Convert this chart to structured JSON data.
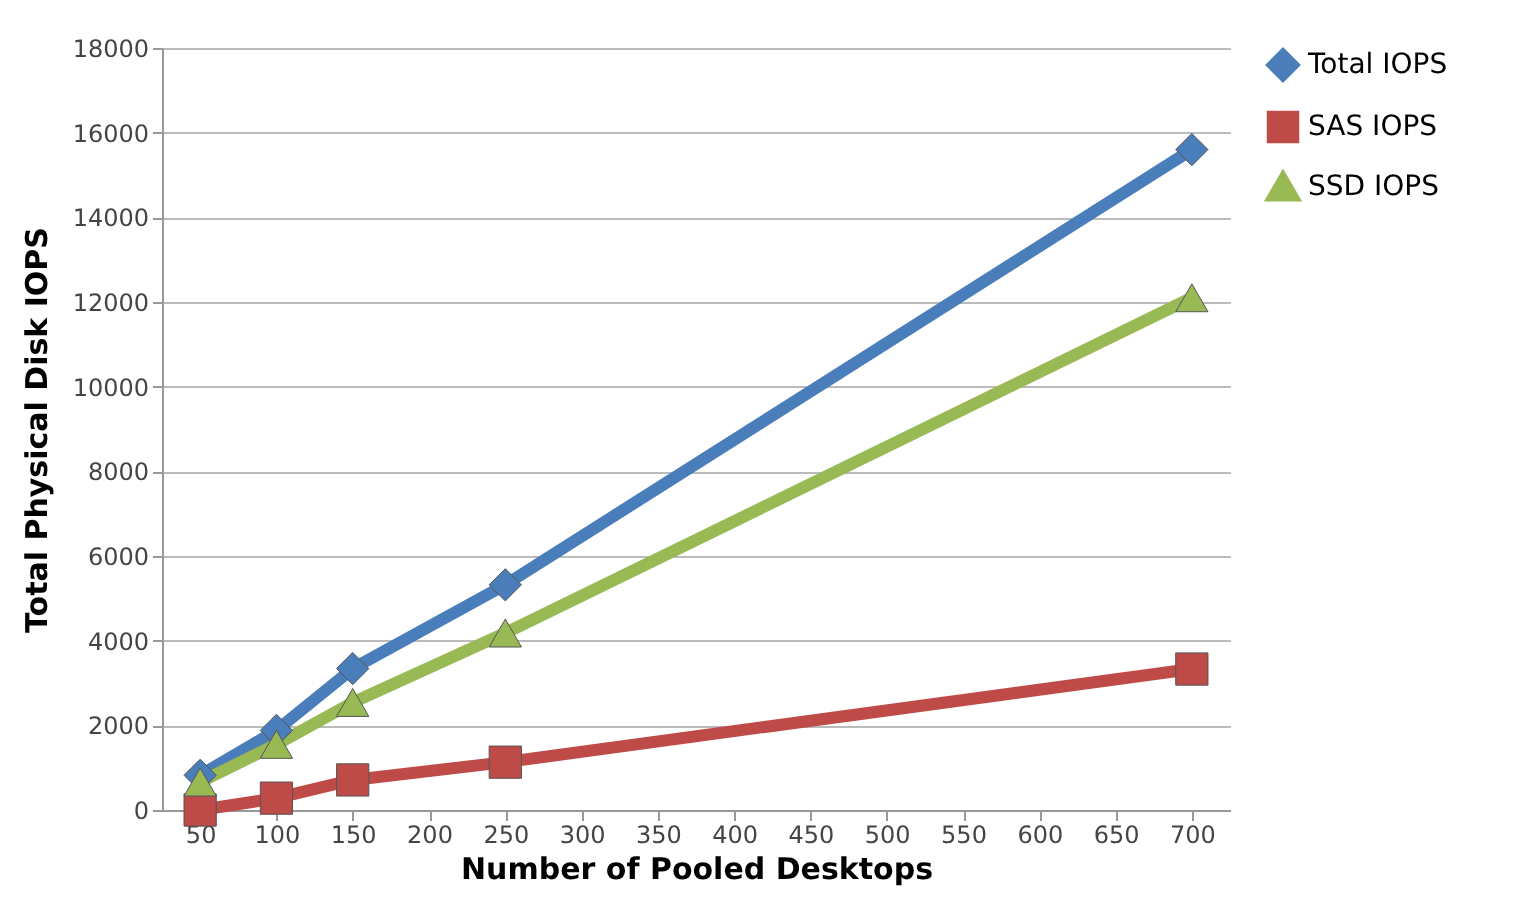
{
  "chart_data": {
    "type": "line",
    "xlabel": "Number of Pooled Desktops",
    "ylabel": "Total Physical Disk IOPS",
    "x": [
      50,
      100,
      150,
      250,
      700
    ],
    "xlim": [
      25,
      725
    ],
    "xticks": [
      50,
      100,
      150,
      200,
      250,
      300,
      350,
      400,
      450,
      500,
      550,
      600,
      650,
      700
    ],
    "ylim": [
      0,
      18000
    ],
    "yticks": [
      0,
      2000,
      4000,
      6000,
      8000,
      10000,
      12000,
      14000,
      16000,
      18000
    ],
    "grid": "y",
    "legend": "right",
    "series": [
      {
        "name": "Total IOPS",
        "color": "#4a7ebb",
        "marker": "diamond",
        "values": [
          820,
          1880,
          3340,
          5320,
          15600
        ]
      },
      {
        "name": "SAS IOPS",
        "color": "#be4b48",
        "marker": "square",
        "values": [
          0,
          280,
          710,
          1130,
          3330
        ]
      },
      {
        "name": "SSD IOPS",
        "color": "#98b954",
        "marker": "triangle",
        "values": [
          660,
          1550,
          2540,
          4180,
          12100
        ]
      }
    ]
  }
}
